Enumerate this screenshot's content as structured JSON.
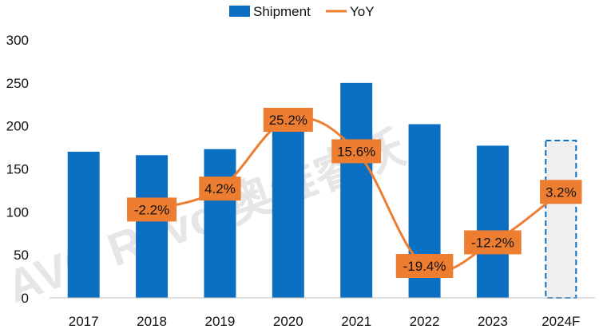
{
  "chart_data": {
    "type": "bar",
    "categories": [
      "2017",
      "2018",
      "2019",
      "2020",
      "2021",
      "2022",
      "2023",
      "2024F"
    ],
    "series": [
      {
        "name": "Shipment",
        "type": "bar",
        "values": [
          170,
          166,
          173,
          216,
          250,
          202,
          177,
          183
        ],
        "forecast_index": 7
      },
      {
        "name": "YoY",
        "type": "line",
        "axis": "secondary",
        "values": [
          null,
          -2.2,
          4.2,
          25.2,
          15.6,
          -19.4,
          -12.2,
          3.2
        ],
        "labels": [
          null,
          "-2.2%",
          "4.2%",
          "25.2%",
          "15.6%",
          "-19.4%",
          "-12.2%",
          "3.2%"
        ]
      }
    ],
    "y_ticks": [
      "0",
      "50",
      "100",
      "150",
      "200",
      "250",
      "300"
    ],
    "ylim": [
      0,
      300
    ],
    "legend": {
      "position": "top-center",
      "entries": [
        "Shipment",
        "YoY"
      ]
    },
    "grid": false,
    "watermark": "AVC Revo 奥维睿沃",
    "colors": {
      "bar": "#0b6fc2",
      "forecast_fill": "#efefef",
      "forecast_border": "#0b6fc2",
      "line": "#ed7d31",
      "label_box": "#ed7d31",
      "axis": "#bfbfbf"
    }
  }
}
